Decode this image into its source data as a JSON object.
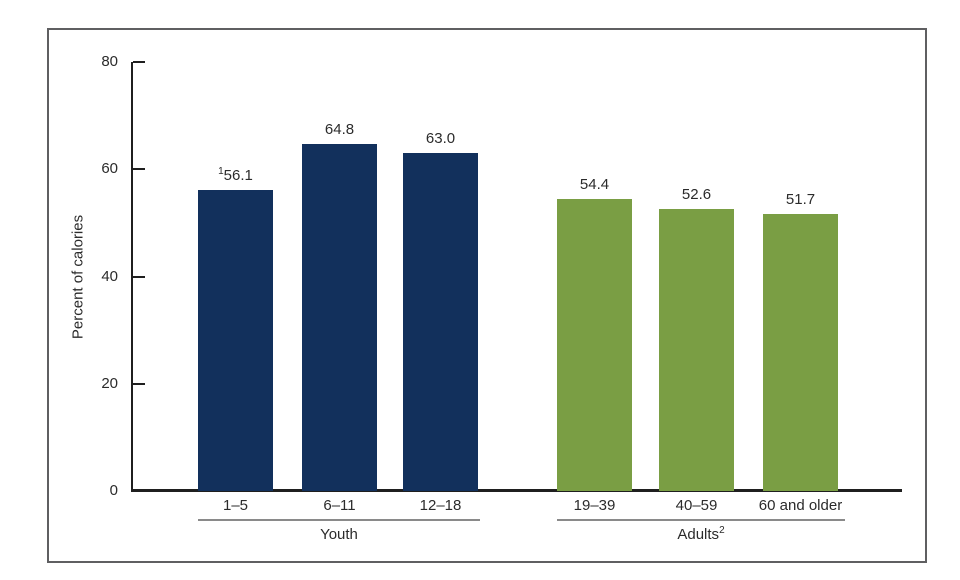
{
  "chart_data": {
    "type": "bar",
    "title": "",
    "xlabel": "",
    "ylabel": "Percent of calories",
    "ylim": [
      0,
      80
    ],
    "yticks": [
      0,
      20,
      40,
      60,
      80
    ],
    "grid": false,
    "legend": "none",
    "groups": [
      {
        "label": "Youth",
        "label_superscript": "",
        "color": "#12305c",
        "categories": [
          "1–5",
          "6–11",
          "12–18"
        ],
        "values": [
          56.1,
          64.8,
          63.0
        ],
        "value_labels": [
          "56.1",
          "64.8",
          "63.0"
        ],
        "value_label_superscripts": [
          "1",
          "",
          ""
        ]
      },
      {
        "label": "Adults",
        "label_superscript": "2",
        "color": "#7a9e44",
        "categories": [
          "19–39",
          "40–59",
          "60 and older"
        ],
        "values": [
          54.4,
          52.6,
          51.7
        ],
        "value_labels": [
          "54.4",
          "52.6",
          "51.7"
        ],
        "value_label_superscripts": [
          "",
          "",
          ""
        ]
      }
    ]
  }
}
